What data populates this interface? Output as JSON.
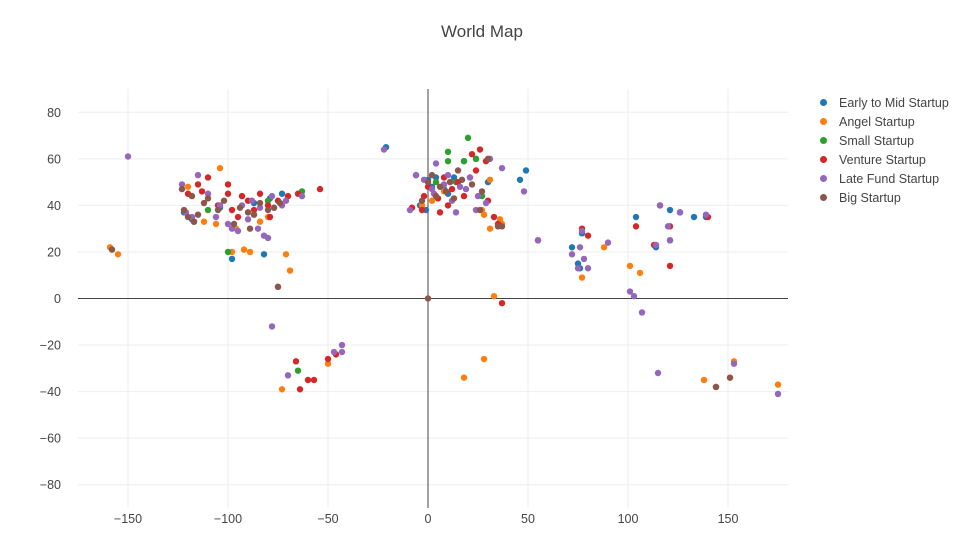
{
  "chart_data": {
    "type": "scatter",
    "title": "World Map",
    "xlabel": "",
    "ylabel": "",
    "xlim": [
      -175,
      180
    ],
    "ylim": [
      -90,
      90
    ],
    "xticks": [
      -150,
      -100,
      -50,
      0,
      50,
      100,
      150
    ],
    "yticks": [
      -80,
      -60,
      -40,
      -20,
      0,
      20,
      40,
      60,
      80
    ],
    "xtick_labels": [
      "−150",
      "−100",
      "−50",
      "0",
      "50",
      "100",
      "150"
    ],
    "ytick_labels": [
      "−80",
      "−60",
      "−40",
      "−20",
      "0",
      "20",
      "40",
      "60",
      "80"
    ],
    "grid": true,
    "zeroline": true,
    "legend_position": "right",
    "series": [
      {
        "name": "Early to Mid Startup",
        "color": "#1f77b4",
        "points": [
          [
            -122,
            37
          ],
          [
            -118,
            34
          ],
          [
            -98,
            17
          ],
          [
            -82,
            19
          ],
          [
            -6,
            53
          ],
          [
            0,
            51
          ],
          [
            4,
            52
          ],
          [
            8,
            47
          ],
          [
            13,
            52
          ],
          [
            24,
            60
          ],
          [
            -21,
            65
          ],
          [
            46,
            51
          ],
          [
            49,
            55
          ],
          [
            72,
            22
          ],
          [
            75,
            15
          ],
          [
            76,
            13
          ],
          [
            104,
            35
          ],
          [
            121,
            38
          ],
          [
            126,
            37
          ],
          [
            121,
            25
          ],
          [
            133,
            35
          ],
          [
            139,
            35
          ],
          [
            114,
            22
          ],
          [
            77,
            28
          ],
          [
            -79,
            43
          ],
          [
            -73,
            45
          ],
          [
            -87,
            41
          ],
          [
            -104,
            39
          ],
          [
            2,
            48
          ],
          [
            -4,
            40
          ],
          [
            10,
            45
          ],
          [
            18,
            59
          ],
          [
            30,
            50
          ],
          [
            -1,
            38
          ]
        ]
      },
      {
        "name": "Angel Startup",
        "color": "#ff7f0e",
        "points": [
          [
            -159,
            22
          ],
          [
            -155,
            19
          ],
          [
            -104,
            56
          ],
          [
            -106,
            32
          ],
          [
            -89,
            20
          ],
          [
            -92,
            21
          ],
          [
            -71,
            19
          ],
          [
            -69,
            12
          ],
          [
            -73,
            -39
          ],
          [
            -50,
            -28
          ],
          [
            -3,
            40
          ],
          [
            28,
            -26
          ],
          [
            18,
            -34
          ],
          [
            31,
            51
          ],
          [
            33,
            1
          ],
          [
            28,
            36
          ],
          [
            31,
            30
          ],
          [
            37,
            32
          ],
          [
            101,
            14
          ],
          [
            106,
            11
          ],
          [
            77,
            9
          ],
          [
            88,
            22
          ],
          [
            138,
            -35
          ],
          [
            151,
            -34
          ],
          [
            175,
            -37
          ],
          [
            153,
            -27
          ],
          [
            -80,
            35
          ],
          [
            -120,
            48
          ],
          [
            -112,
            33
          ],
          [
            8,
            46
          ],
          [
            2,
            42
          ],
          [
            27,
            38
          ],
          [
            36,
            34
          ],
          [
            -96,
            30
          ],
          [
            -84,
            33
          ],
          [
            -98,
            20
          ]
        ]
      },
      {
        "name": "Small Startup",
        "color": "#2ca02c",
        "points": [
          [
            -100,
            20
          ],
          [
            -63,
            46
          ],
          [
            -65,
            -31
          ],
          [
            10,
            63
          ],
          [
            20,
            69
          ],
          [
            24,
            60
          ],
          [
            18,
            59
          ],
          [
            10,
            59
          ],
          [
            27,
            44
          ],
          [
            -80,
            42
          ],
          [
            -110,
            38
          ],
          [
            4,
            50
          ],
          [
            14,
            50
          ]
        ]
      },
      {
        "name": "Venture Startup",
        "color": "#d62728",
        "points": [
          [
            -120,
            45
          ],
          [
            -115,
            49
          ],
          [
            -110,
            52
          ],
          [
            -100,
            49
          ],
          [
            -100,
            45
          ],
          [
            -98,
            38
          ],
          [
            -95,
            35
          ],
          [
            -90,
            42
          ],
          [
            -87,
            38
          ],
          [
            -84,
            45
          ],
          [
            -80,
            40
          ],
          [
            -75,
            42
          ],
          [
            -70,
            44
          ],
          [
            -65,
            45
          ],
          [
            -54,
            47
          ],
          [
            -66,
            -27
          ],
          [
            -64,
            -39
          ],
          [
            -57,
            -35
          ],
          [
            -60,
            -35
          ],
          [
            -50,
            -26
          ],
          [
            -46,
            -24
          ],
          [
            0,
            48
          ],
          [
            5,
            43
          ],
          [
            8,
            52
          ],
          [
            12,
            47
          ],
          [
            15,
            50
          ],
          [
            18,
            44
          ],
          [
            21,
            52
          ],
          [
            24,
            55
          ],
          [
            22,
            62
          ],
          [
            26,
            64
          ],
          [
            29,
            59
          ],
          [
            -3,
            38
          ],
          [
            -8,
            39
          ],
          [
            35,
            32
          ],
          [
            33,
            35
          ],
          [
            37,
            -2
          ],
          [
            55,
            25
          ],
          [
            77,
            30
          ],
          [
            80,
            27
          ],
          [
            104,
            31
          ],
          [
            116,
            40
          ],
          [
            121,
            31
          ],
          [
            121,
            14
          ],
          [
            140,
            35
          ],
          [
            113,
            23
          ],
          [
            -113,
            46
          ],
          [
            -105,
            40
          ],
          [
            -93,
            44
          ],
          [
            -79,
            35
          ],
          [
            6,
            37
          ],
          [
            10,
            40
          ],
          [
            -2,
            44
          ],
          [
            30,
            42
          ],
          [
            144,
            -38
          ]
        ]
      },
      {
        "name": "Late Fund Startup",
        "color": "#9467bd",
        "points": [
          [
            -150,
            61
          ],
          [
            -123,
            49
          ],
          [
            -118,
            35
          ],
          [
            -115,
            53
          ],
          [
            -110,
            45
          ],
          [
            -104,
            40
          ],
          [
            -98,
            30
          ],
          [
            -95,
            29
          ],
          [
            -90,
            34
          ],
          [
            -85,
            30
          ],
          [
            -82,
            27
          ],
          [
            -80,
            26
          ],
          [
            -78,
            44
          ],
          [
            -73,
            40
          ],
          [
            -71,
            42
          ],
          [
            -63,
            44
          ],
          [
            -75,
            5
          ],
          [
            -78,
            -12
          ],
          [
            -70,
            -33
          ],
          [
            -47,
            -23
          ],
          [
            -43,
            -20
          ],
          [
            -43,
            -23
          ],
          [
            -22,
            64
          ],
          [
            -6,
            53
          ],
          [
            -2,
            51
          ],
          [
            3,
            45
          ],
          [
            4,
            58
          ],
          [
            10,
            53
          ],
          [
            12,
            42
          ],
          [
            16,
            48
          ],
          [
            21,
            52
          ],
          [
            24,
            38
          ],
          [
            31,
            60
          ],
          [
            37,
            56
          ],
          [
            48,
            46
          ],
          [
            55,
            25
          ],
          [
            77,
            29
          ],
          [
            76,
            22
          ],
          [
            72,
            19
          ],
          [
            75,
            13
          ],
          [
            80,
            13
          ],
          [
            90,
            24
          ],
          [
            78,
            17
          ],
          [
            101,
            3
          ],
          [
            103,
            1
          ],
          [
            107,
            -6
          ],
          [
            115,
            -32
          ],
          [
            116,
            40
          ],
          [
            120,
            31
          ],
          [
            121,
            25
          ],
          [
            114,
            23
          ],
          [
            126,
            37
          ],
          [
            139,
            36
          ],
          [
            153,
            -28
          ],
          [
            175,
            -41
          ],
          [
            -121,
            37
          ],
          [
            -117,
            33
          ],
          [
            -100,
            32
          ],
          [
            -88,
            42
          ],
          [
            -84,
            39
          ],
          [
            -77,
            39
          ],
          [
            8,
            49
          ],
          [
            19,
            47
          ],
          [
            25,
            44
          ],
          [
            -9,
            38
          ],
          [
            14,
            37
          ],
          [
            29,
            41
          ],
          [
            -106,
            35
          ],
          [
            -93,
            40
          ],
          [
            2,
            47
          ]
        ]
      },
      {
        "name": "Big Startup",
        "color": "#8c564b",
        "points": [
          [
            -158,
            21
          ],
          [
            -123,
            47
          ],
          [
            -122,
            38
          ],
          [
            -120,
            35
          ],
          [
            -117,
            33
          ],
          [
            -118,
            44
          ],
          [
            -112,
            41
          ],
          [
            -110,
            43
          ],
          [
            -105,
            38
          ],
          [
            -97,
            32
          ],
          [
            -94,
            39
          ],
          [
            -90,
            37
          ],
          [
            -87,
            36
          ],
          [
            -84,
            41
          ],
          [
            -80,
            38
          ],
          [
            -77,
            39
          ],
          [
            -74,
            41
          ],
          [
            -75,
            5
          ],
          [
            0,
            0
          ],
          [
            -3,
            42
          ],
          [
            0,
            50
          ],
          [
            2,
            53
          ],
          [
            6,
            48
          ],
          [
            9,
            46
          ],
          [
            13,
            43
          ],
          [
            17,
            51
          ],
          [
            22,
            49
          ],
          [
            26,
            38
          ],
          [
            30,
            60
          ],
          [
            35,
            31
          ],
          [
            37,
            31
          ],
          [
            144,
            -38
          ],
          [
            151,
            -34
          ],
          [
            -115,
            36
          ],
          [
            -102,
            42
          ],
          [
            -89,
            30
          ],
          [
            4,
            44
          ],
          [
            15,
            55
          ],
          [
            11,
            50
          ],
          [
            27,
            46
          ]
        ]
      }
    ]
  }
}
